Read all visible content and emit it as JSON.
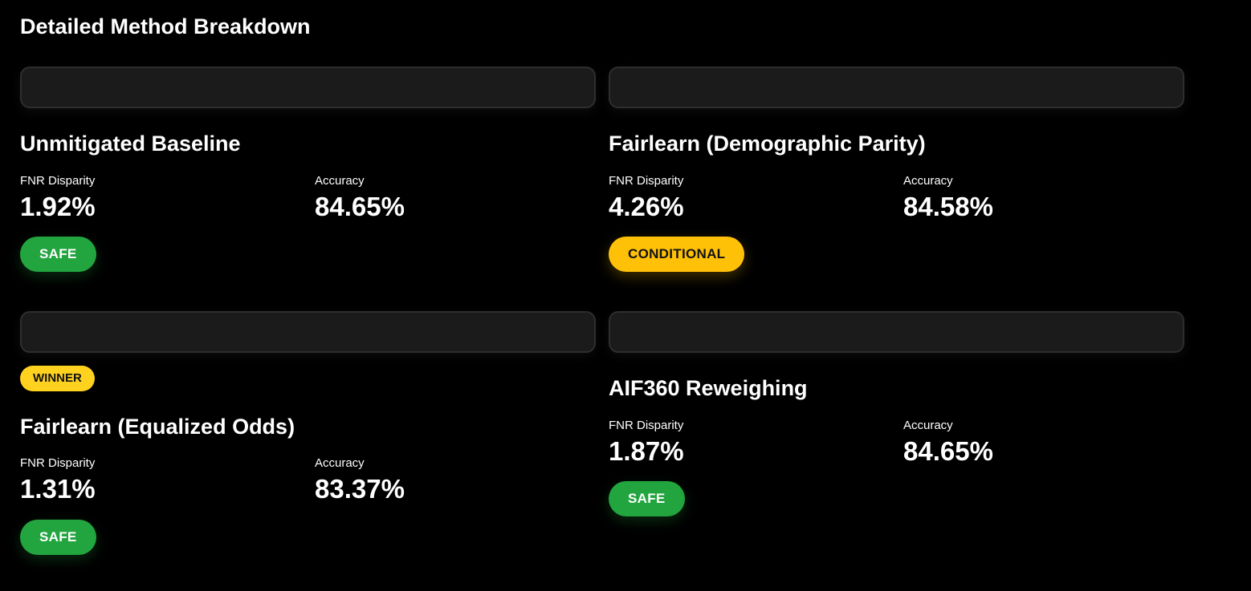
{
  "section_title": "Detailed Method Breakdown",
  "metric_labels": {
    "fnr": "FNR Disparity",
    "accuracy": "Accuracy"
  },
  "methods": [
    {
      "name": "Unmitigated Baseline",
      "fnr_disparity": "1.92%",
      "accuracy": "84.65%",
      "status": "SAFE"
    },
    {
      "name": "Fairlearn (Demographic Parity)",
      "fnr_disparity": "4.26%",
      "accuracy": "84.58%",
      "status": "CONDITIONAL"
    },
    {
      "name": "Fairlearn (Equalized Odds)",
      "badge": "WINNER",
      "fnr_disparity": "1.31%",
      "accuracy": "83.37%",
      "status": "SAFE"
    },
    {
      "name": "AIF360 Reweighing",
      "fnr_disparity": "1.87%",
      "accuracy": "84.65%",
      "status": "SAFE"
    }
  ],
  "colors": {
    "background": "#000000",
    "card_bar": "#1b1b1b",
    "safe": "#22a53f",
    "conditional": "#ffc107",
    "winner": "#ffd21f"
  }
}
